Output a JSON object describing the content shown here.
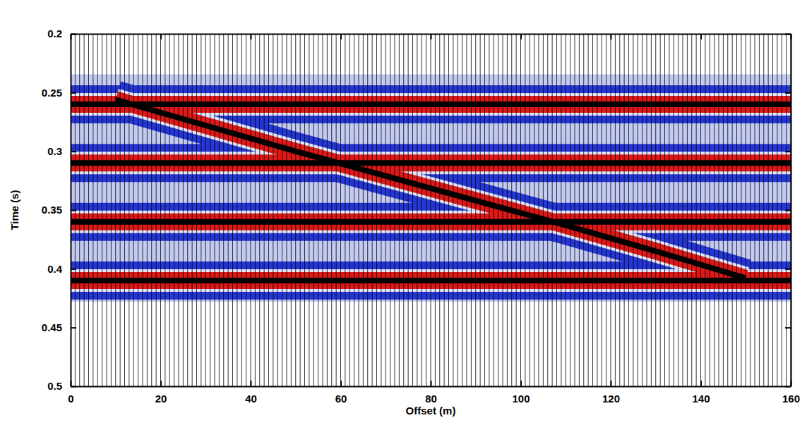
{
  "chart_data": {
    "type": "wiggle",
    "xlabel": "Offset (m)",
    "ylabel": "Time (s)",
    "xlim": [
      0,
      160
    ],
    "ylim": [
      0.2,
      0.5
    ],
    "xticks": [
      0,
      20,
      40,
      60,
      80,
      100,
      120,
      140,
      160
    ],
    "yticks": [
      0.2,
      0.25,
      0.3,
      0.35,
      0.4,
      0.45,
      0.5
    ],
    "traces": [
      0,
      1,
      2,
      3,
      4,
      5,
      6,
      7,
      8,
      9,
      10,
      11,
      12,
      13,
      14,
      15,
      16,
      17,
      18,
      19,
      20,
      21,
      22,
      23,
      24,
      25,
      26,
      27,
      28,
      29,
      30,
      31,
      32,
      33,
      34,
      35,
      36,
      37,
      38,
      39,
      40,
      41,
      42,
      43,
      44,
      45,
      46,
      47,
      48,
      49,
      50,
      51,
      52,
      53,
      54,
      55,
      56,
      57,
      58,
      59,
      60,
      61,
      62,
      63,
      64,
      65,
      66,
      67,
      68,
      69,
      70,
      71,
      72,
      73,
      74,
      75,
      76,
      77,
      78,
      79,
      80,
      81,
      82,
      83,
      84,
      85,
      86,
      87,
      88,
      89,
      90,
      91,
      92,
      93,
      94,
      95,
      96,
      97,
      98,
      99,
      100,
      101,
      102,
      103,
      104,
      105,
      106,
      107,
      108,
      109,
      110,
      111,
      112,
      113,
      114,
      115,
      116,
      117,
      118,
      119,
      120,
      121,
      122,
      123,
      124,
      125,
      126,
      127,
      128,
      129,
      130,
      131,
      132,
      133,
      134,
      135,
      136,
      137,
      138,
      139,
      140,
      141,
      142,
      143,
      144,
      145,
      146,
      147,
      148,
      149,
      150,
      151,
      152,
      153,
      154,
      155,
      156,
      157,
      158,
      159,
      160
    ],
    "events": [
      {
        "x": [
          0,
          160
        ],
        "y": [
          0.26,
          0.26
        ]
      },
      {
        "x": [
          0,
          160
        ],
        "y": [
          0.31,
          0.31
        ]
      },
      {
        "x": [
          0,
          160
        ],
        "y": [
          0.36,
          0.36
        ]
      },
      {
        "x": [
          0,
          160
        ],
        "y": [
          0.41,
          0.41
        ]
      },
      {
        "x": [
          10,
          30,
          50,
          70,
          90,
          110,
          130,
          150
        ],
        "y": [
          0.256,
          0.278,
          0.3,
          0.321,
          0.342,
          0.363,
          0.385,
          0.408
        ]
      }
    ]
  }
}
